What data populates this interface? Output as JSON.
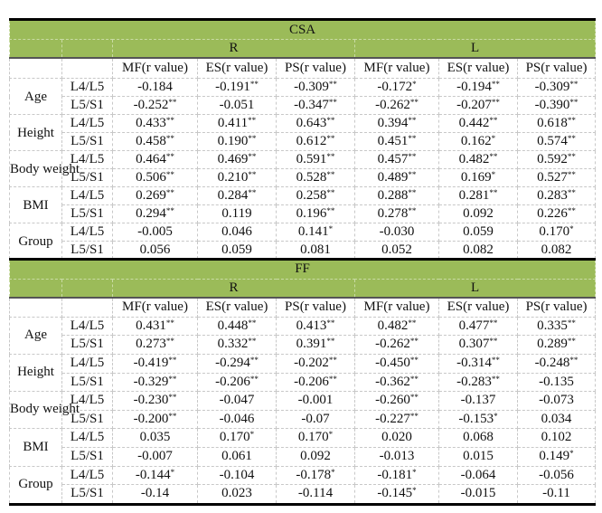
{
  "column_groups": [
    "R",
    "L"
  ],
  "column_headers": [
    "MF(r value)",
    "ES(r value)",
    "PS(r value)",
    "MF(r value)",
    "ES(r value)",
    "PS(r value)"
  ],
  "tables": [
    {
      "title": "CSA",
      "variables": [
        {
          "name": "Age",
          "rows": [
            {
              "level": "L4/L5",
              "cells": [
                [
                  "-0.184",
                  ""
                ],
                [
                  "-0.191",
                  "**"
                ],
                [
                  "-0.309",
                  "**"
                ],
                [
                  "-0.172",
                  "*"
                ],
                [
                  "-0.194",
                  "**"
                ],
                [
                  "-0.309",
                  "**"
                ]
              ]
            },
            {
              "level": "L5/S1",
              "cells": [
                [
                  "-0.252",
                  "**"
                ],
                [
                  "-0.051",
                  ""
                ],
                [
                  "-0.347",
                  "**"
                ],
                [
                  "-0.262",
                  "**"
                ],
                [
                  "-0.207",
                  "**"
                ],
                [
                  "-0.390",
                  "**"
                ]
              ]
            }
          ]
        },
        {
          "name": "Height",
          "rows": [
            {
              "level": "L4/L5",
              "cells": [
                [
                  "0.433",
                  "**"
                ],
                [
                  "0.411",
                  "**"
                ],
                [
                  "0.643",
                  "**"
                ],
                [
                  "0.394",
                  "**"
                ],
                [
                  "0.442",
                  "**"
                ],
                [
                  "0.618",
                  "**"
                ]
              ]
            },
            {
              "level": "L5/S1",
              "cells": [
                [
                  "0.458",
                  "**"
                ],
                [
                  "0.190",
                  "**"
                ],
                [
                  "0.612",
                  "**"
                ],
                [
                  "0.451",
                  "**"
                ],
                [
                  "0.162",
                  "*"
                ],
                [
                  "0.574",
                  "**"
                ]
              ]
            }
          ]
        },
        {
          "name": "Body weight",
          "rows": [
            {
              "level": "L4/L5",
              "cells": [
                [
                  "0.464",
                  "**"
                ],
                [
                  "0.469",
                  "**"
                ],
                [
                  "0.591",
                  "**"
                ],
                [
                  "0.457",
                  "**"
                ],
                [
                  "0.482",
                  "**"
                ],
                [
                  "0.592",
                  "**"
                ]
              ]
            },
            {
              "level": "L5/S1",
              "cells": [
                [
                  "0.506",
                  "**"
                ],
                [
                  "0.210",
                  "**"
                ],
                [
                  "0.528",
                  "**"
                ],
                [
                  "0.489",
                  "**"
                ],
                [
                  "0.169",
                  "*"
                ],
                [
                  "0.527",
                  "**"
                ]
              ]
            }
          ]
        },
        {
          "name": "BMI",
          "rows": [
            {
              "level": "L4/L5",
              "cells": [
                [
                  "0.269",
                  "**"
                ],
                [
                  "0.284",
                  "**"
                ],
                [
                  "0.258",
                  "**"
                ],
                [
                  "0.288",
                  "**"
                ],
                [
                  "0.281",
                  "**"
                ],
                [
                  "0.283",
                  "**"
                ]
              ]
            },
            {
              "level": "L5/S1",
              "cells": [
                [
                  "0.294",
                  "**"
                ],
                [
                  "0.119",
                  ""
                ],
                [
                  "0.196",
                  "**"
                ],
                [
                  "0.278",
                  "**"
                ],
                [
                  "0.092",
                  ""
                ],
                [
                  "0.226",
                  "**"
                ]
              ]
            }
          ]
        },
        {
          "name": "Group",
          "rows": [
            {
              "level": "L4/L5",
              "cells": [
                [
                  "-0.005",
                  ""
                ],
                [
                  "0.046",
                  ""
                ],
                [
                  "0.141",
                  "*"
                ],
                [
                  "-0.030",
                  ""
                ],
                [
                  "0.059",
                  ""
                ],
                [
                  "0.170",
                  "*"
                ]
              ]
            },
            {
              "level": "L5/S1",
              "cells": [
                [
                  "0.056",
                  ""
                ],
                [
                  "0.059",
                  ""
                ],
                [
                  "0.081",
                  ""
                ],
                [
                  "0.052",
                  ""
                ],
                [
                  "0.082",
                  ""
                ],
                [
                  "0.082",
                  ""
                ]
              ]
            }
          ]
        }
      ]
    },
    {
      "title": "FF",
      "variables": [
        {
          "name": "Age",
          "rows": [
            {
              "level": "L4/L5",
              "cells": [
                [
                  "0.431",
                  "**"
                ],
                [
                  "0.448",
                  "**"
                ],
                [
                  "0.413",
                  "**"
                ],
                [
                  "0.482",
                  "**"
                ],
                [
                  "0.477",
                  "**"
                ],
                [
                  "0.335",
                  "**"
                ]
              ]
            },
            {
              "level": "L5/S1",
              "cells": [
                [
                  "0.273",
                  "**"
                ],
                [
                  "0.332",
                  "**"
                ],
                [
                  "0.391",
                  "**"
                ],
                [
                  "-0.262",
                  "**"
                ],
                [
                  "0.307",
                  "**"
                ],
                [
                  "0.289",
                  "**"
                ]
              ]
            }
          ]
        },
        {
          "name": "Height",
          "rows": [
            {
              "level": "L4/L5",
              "cells": [
                [
                  "-0.419",
                  "**"
                ],
                [
                  "-0.294",
                  "**"
                ],
                [
                  "-0.202",
                  "**"
                ],
                [
                  "-0.450",
                  "**"
                ],
                [
                  "-0.314",
                  "**"
                ],
                [
                  "-0.248",
                  "**"
                ]
              ]
            },
            {
              "level": "L5/S1",
              "cells": [
                [
                  "-0.329",
                  "**"
                ],
                [
                  "-0.206",
                  "**"
                ],
                [
                  "-0.206",
                  "**"
                ],
                [
                  "-0.362",
                  "**"
                ],
                [
                  "-0.283",
                  "**"
                ],
                [
                  "-0.135",
                  ""
                ]
              ]
            }
          ]
        },
        {
          "name": "Body weight",
          "rows": [
            {
              "level": "L4/L5",
              "cells": [
                [
                  "-0.230",
                  "**"
                ],
                [
                  "-0.047",
                  ""
                ],
                [
                  "-0.001",
                  ""
                ],
                [
                  "-0.260",
                  "**"
                ],
                [
                  "-0.137",
                  ""
                ],
                [
                  "-0.073",
                  ""
                ]
              ]
            },
            {
              "level": "L5/S1",
              "cells": [
                [
                  "-0.200",
                  "**"
                ],
                [
                  "-0.046",
                  ""
                ],
                [
                  "-0.07",
                  ""
                ],
                [
                  "-0.227",
                  "**"
                ],
                [
                  "-0.153",
                  "*"
                ],
                [
                  "0.034",
                  ""
                ]
              ]
            }
          ]
        },
        {
          "name": "BMI",
          "rows": [
            {
              "level": "L4/L5",
              "cells": [
                [
                  "0.035",
                  ""
                ],
                [
                  "0.170",
                  "*"
                ],
                [
                  "0.170",
                  "*"
                ],
                [
                  "0.020",
                  ""
                ],
                [
                  "0.068",
                  ""
                ],
                [
                  "0.102",
                  ""
                ]
              ]
            },
            {
              "level": "L5/S1",
              "cells": [
                [
                  "-0.007",
                  ""
                ],
                [
                  "0.061",
                  ""
                ],
                [
                  "0.092",
                  ""
                ],
                [
                  "-0.013",
                  ""
                ],
                [
                  "0.015",
                  ""
                ],
                [
                  "0.149",
                  "*"
                ]
              ]
            }
          ]
        },
        {
          "name": "Group",
          "rows": [
            {
              "level": "L4/L5",
              "cells": [
                [
                  "-0.144",
                  "*"
                ],
                [
                  "-0.104",
                  ""
                ],
                [
                  "-0.178",
                  "*"
                ],
                [
                  "-0.181",
                  "*"
                ],
                [
                  "-0.064",
                  ""
                ],
                [
                  "-0.056",
                  ""
                ]
              ]
            },
            {
              "level": "L5/S1",
              "cells": [
                [
                  "-0.14",
                  ""
                ],
                [
                  "0.023",
                  ""
                ],
                [
                  "-0.114",
                  ""
                ],
                [
                  "-0.145",
                  "*"
                ],
                [
                  "-0.015",
                  ""
                ],
                [
                  "-0.11",
                  ""
                ]
              ]
            }
          ]
        }
      ]
    }
  ],
  "colors": {
    "header_green": "#9bbb59",
    "border": "#c8c8c8"
  }
}
